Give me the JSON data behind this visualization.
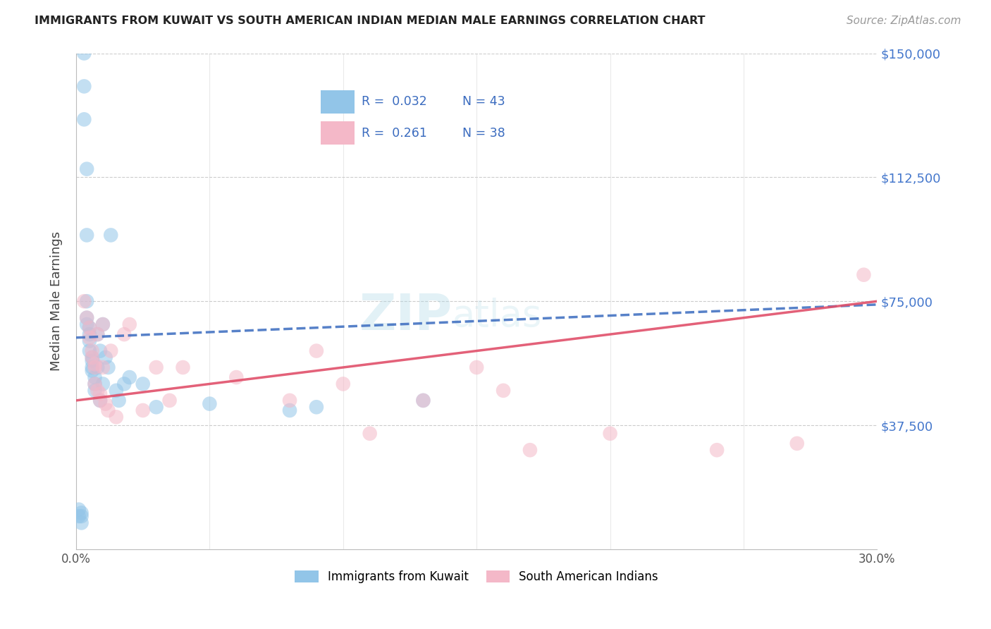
{
  "title": "IMMIGRANTS FROM KUWAIT VS SOUTH AMERICAN INDIAN MEDIAN MALE EARNINGS CORRELATION CHART",
  "source": "Source: ZipAtlas.com",
  "ylabel": "Median Male Earnings",
  "xlim": [
    0,
    0.3
  ],
  "ylim": [
    0,
    150000
  ],
  "ytick_values": [
    0,
    37500,
    75000,
    112500,
    150000
  ],
  "xtick_values": [
    0.0,
    0.05,
    0.1,
    0.15,
    0.2,
    0.25,
    0.3
  ],
  "blue_color": "#92c5e8",
  "pink_color": "#f4b8c8",
  "blue_line_color": "#3a6bbf",
  "pink_line_color": "#e0506a",
  "blue_line_x0": 0.0,
  "blue_line_y0": 64000,
  "blue_line_x1": 0.3,
  "blue_line_y1": 74000,
  "pink_line_x0": 0.0,
  "pink_line_y0": 45000,
  "pink_line_x1": 0.3,
  "pink_line_y1": 75000,
  "blue_scatter_x": [
    0.001,
    0.001,
    0.002,
    0.002,
    0.002,
    0.003,
    0.003,
    0.003,
    0.004,
    0.004,
    0.004,
    0.004,
    0.004,
    0.005,
    0.005,
    0.005,
    0.005,
    0.006,
    0.006,
    0.006,
    0.006,
    0.007,
    0.007,
    0.007,
    0.008,
    0.008,
    0.009,
    0.009,
    0.01,
    0.01,
    0.011,
    0.012,
    0.013,
    0.015,
    0.016,
    0.018,
    0.02,
    0.025,
    0.03,
    0.05,
    0.08,
    0.09,
    0.13
  ],
  "blue_scatter_y": [
    10000,
    12000,
    8000,
    10000,
    11000,
    150000,
    140000,
    130000,
    115000,
    95000,
    75000,
    70000,
    68000,
    67000,
    65000,
    63000,
    60000,
    58000,
    57000,
    55000,
    54000,
    52000,
    50000,
    48000,
    65000,
    55000,
    60000,
    45000,
    50000,
    68000,
    58000,
    55000,
    95000,
    48000,
    45000,
    50000,
    52000,
    50000,
    43000,
    44000,
    42000,
    43000,
    45000
  ],
  "pink_scatter_x": [
    0.003,
    0.004,
    0.005,
    0.005,
    0.006,
    0.006,
    0.007,
    0.007,
    0.007,
    0.008,
    0.008,
    0.009,
    0.009,
    0.01,
    0.01,
    0.011,
    0.012,
    0.013,
    0.015,
    0.018,
    0.02,
    0.025,
    0.03,
    0.035,
    0.04,
    0.06,
    0.08,
    0.09,
    0.1,
    0.11,
    0.13,
    0.15,
    0.16,
    0.17,
    0.2,
    0.24,
    0.27,
    0.295
  ],
  "pink_scatter_y": [
    75000,
    70000,
    67000,
    64000,
    60000,
    58000,
    56000,
    55000,
    50000,
    65000,
    48000,
    47000,
    45000,
    68000,
    55000,
    44000,
    42000,
    60000,
    40000,
    65000,
    68000,
    42000,
    55000,
    45000,
    55000,
    52000,
    45000,
    60000,
    50000,
    35000,
    45000,
    55000,
    48000,
    30000,
    35000,
    30000,
    32000,
    83000
  ]
}
